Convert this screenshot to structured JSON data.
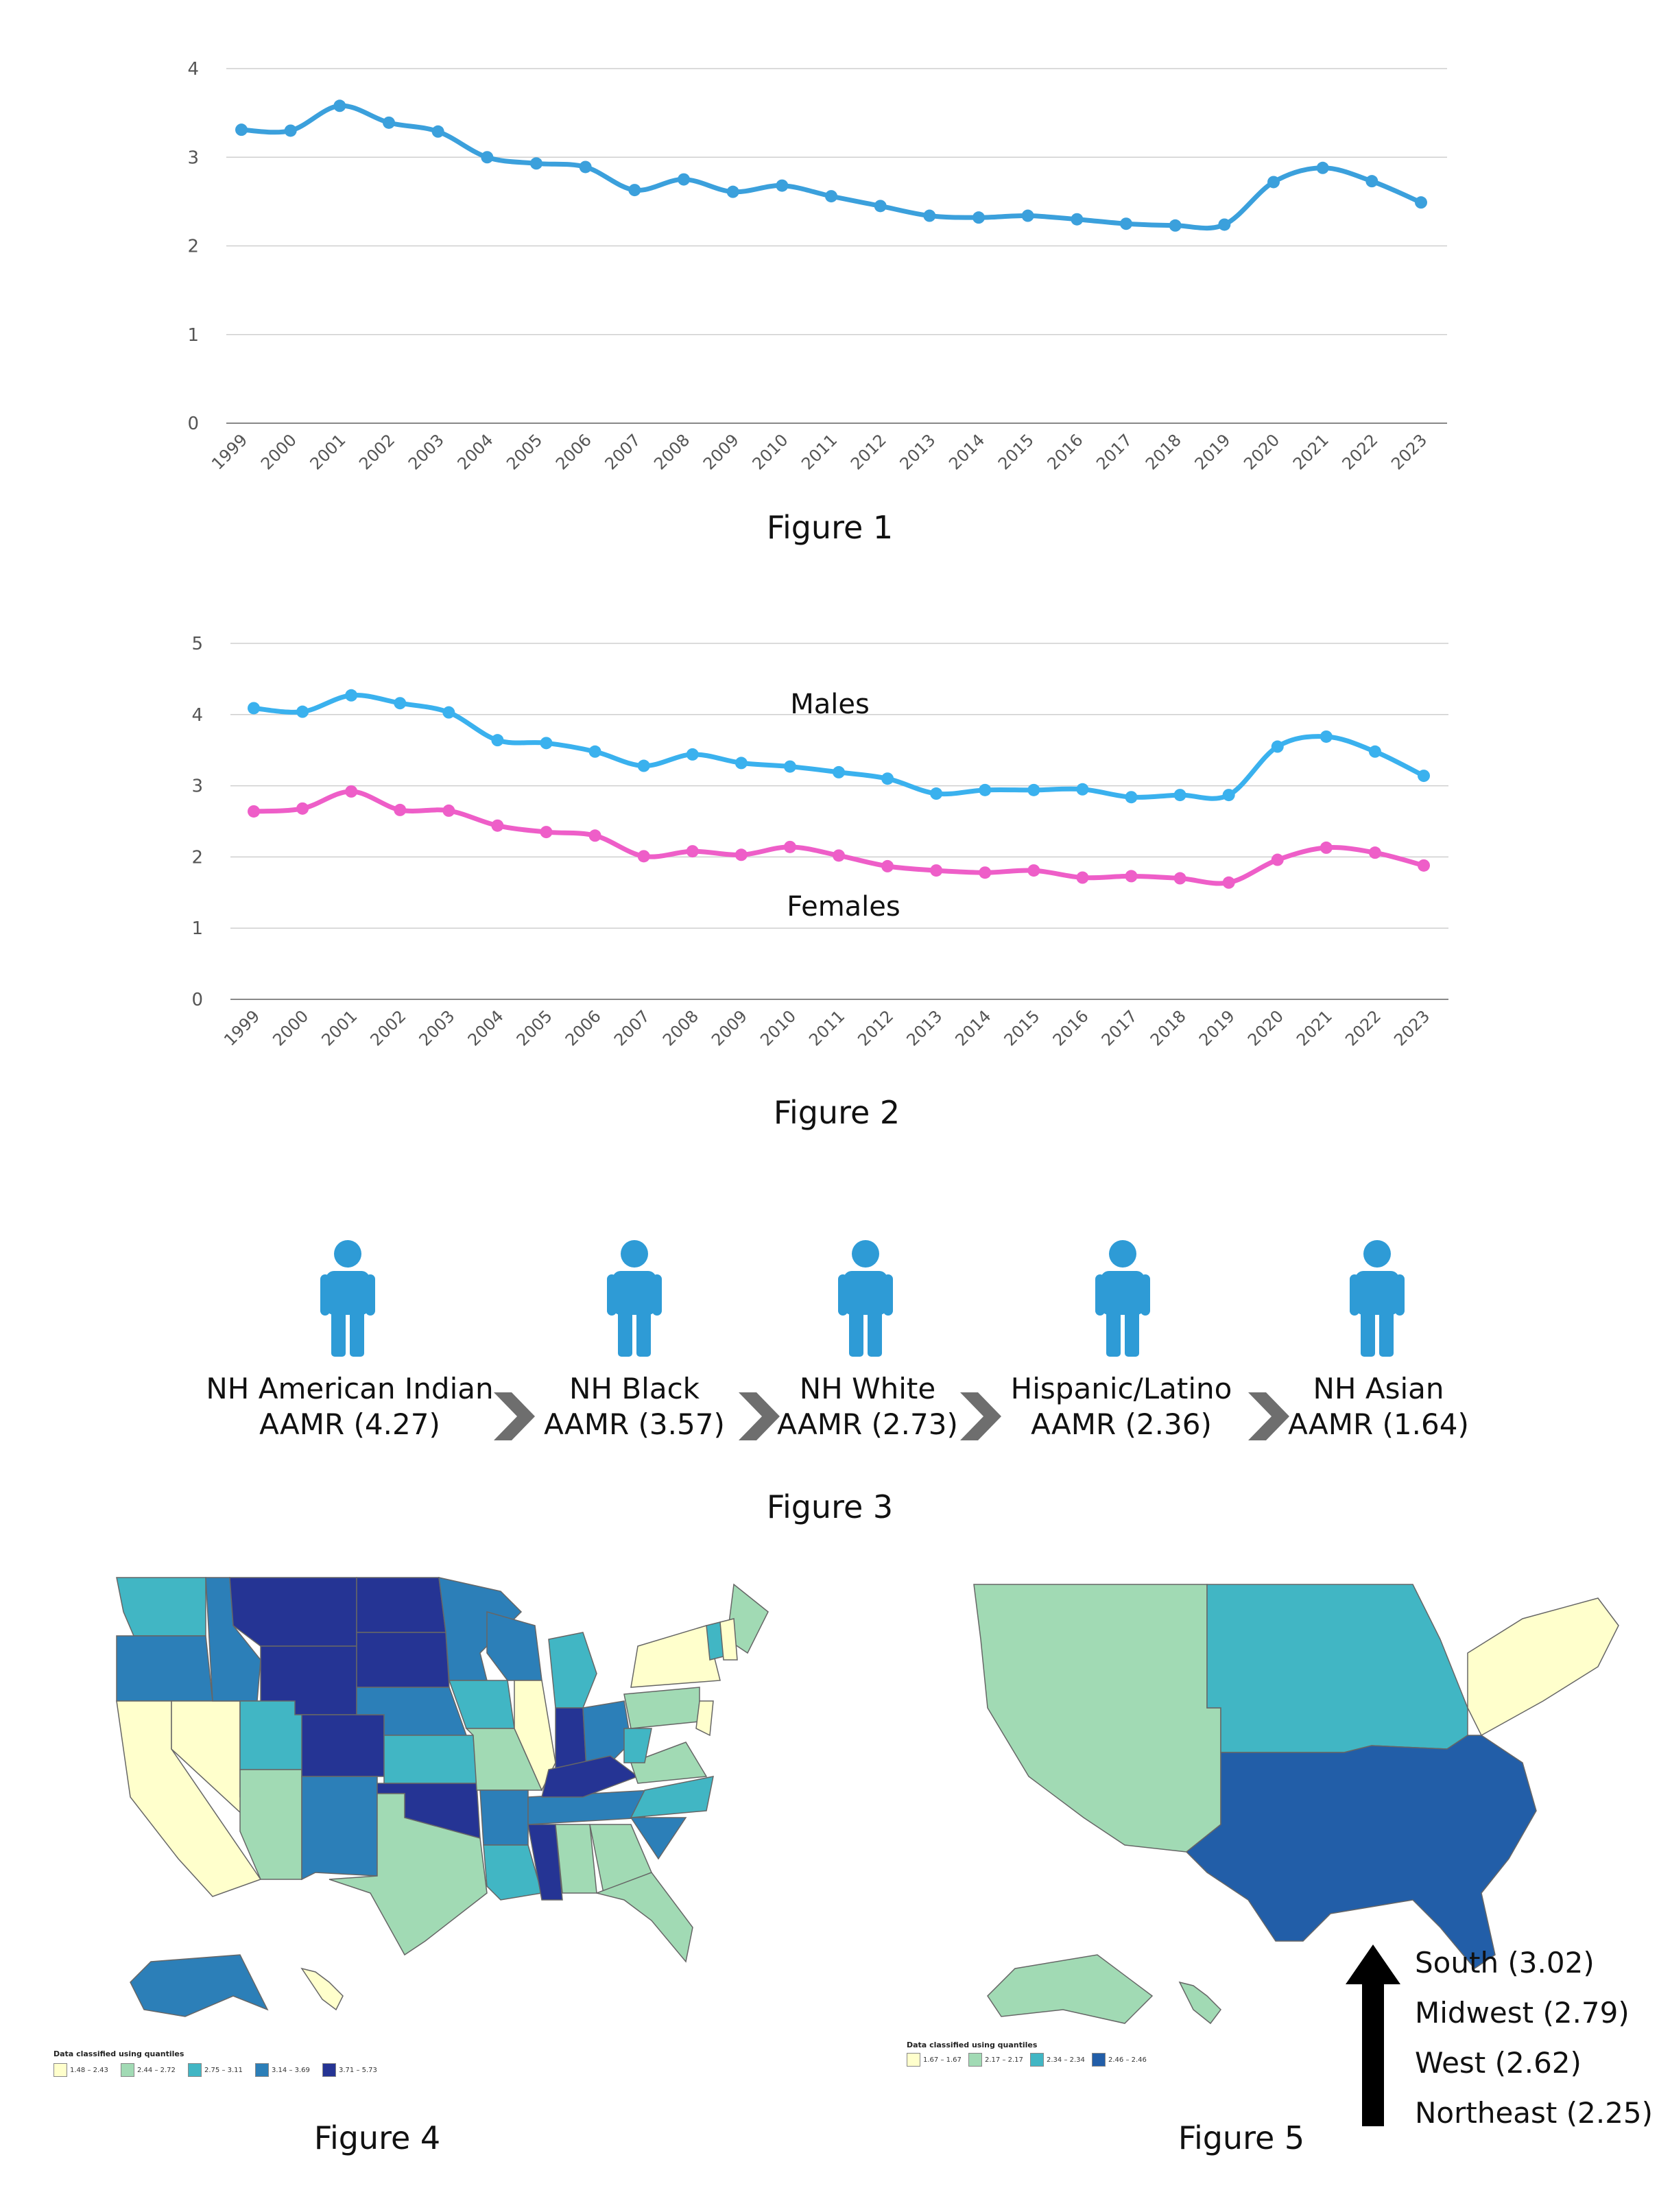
{
  "figures": {
    "fig1_caption": "Figure 1",
    "fig2_caption": "Figure 2",
    "fig3_caption": "Figure 3",
    "fig4_caption": "Figure 4",
    "fig5_caption": "Figure 5"
  },
  "chart_data": [
    {
      "type": "line",
      "x": [
        "1999",
        "2000",
        "2001",
        "2002",
        "2003",
        "2004",
        "2005",
        "2006",
        "2007",
        "2008",
        "2009",
        "2010",
        "2011",
        "2012",
        "2013",
        "2014",
        "2015",
        "2016",
        "2017",
        "2018",
        "2019",
        "2020",
        "2021",
        "2022",
        "2023"
      ],
      "ylim": [
        0,
        4
      ],
      "yticks": [
        "0",
        "1",
        "2",
        "3",
        "4"
      ],
      "series": [
        {
          "color": "#3ba0dc",
          "values": [
            3.31,
            3.3,
            3.58,
            3.39,
            3.29,
            3.0,
            2.93,
            2.89,
            2.63,
            2.75,
            2.61,
            2.68,
            2.56,
            2.45,
            2.34,
            2.32,
            2.34,
            2.3,
            2.25,
            2.23,
            2.24,
            2.72,
            2.88,
            2.73,
            2.49
          ]
        }
      ],
      "grid": true
    },
    {
      "type": "line",
      "x": [
        "1999",
        "2000",
        "2001",
        "2002",
        "2003",
        "2004",
        "2005",
        "2006",
        "2007",
        "2008",
        "2009",
        "2010",
        "2011",
        "2012",
        "2013",
        "2014",
        "2015",
        "2016",
        "2017",
        "2018",
        "2019",
        "2020",
        "2021",
        "2022",
        "2023"
      ],
      "ylim": [
        0,
        5
      ],
      "yticks": [
        "0",
        "1",
        "2",
        "3",
        "4",
        "5"
      ],
      "series": [
        {
          "name": "Males",
          "color": "#3ab1ee",
          "values": [
            4.09,
            4.04,
            4.27,
            4.16,
            4.03,
            3.64,
            3.6,
            3.48,
            3.28,
            3.44,
            3.32,
            3.27,
            3.19,
            3.1,
            2.89,
            2.94,
            2.94,
            2.95,
            2.84,
            2.87,
            2.87,
            3.55,
            3.69,
            3.48,
            3.14
          ]
        },
        {
          "name": "Females",
          "color": "#ee5ec8",
          "values": [
            2.64,
            2.68,
            2.92,
            2.66,
            2.65,
            2.44,
            2.35,
            2.3,
            2.01,
            2.08,
            2.03,
            2.14,
            2.02,
            1.87,
            1.81,
            1.78,
            1.81,
            1.71,
            1.73,
            1.7,
            1.64,
            1.96,
            2.13,
            2.06,
            1.88
          ]
        }
      ],
      "grid": true
    }
  ],
  "groups": [
    {
      "name": "NH American Indian",
      "aamr": "AAMR (4.27)"
    },
    {
      "name": "NH Black",
      "aamr": "AAMR (3.57)"
    },
    {
      "name": "NH White",
      "aamr": "AAMR (2.73)"
    },
    {
      "name": "Hispanic/Latino",
      "aamr": "AAMR (2.36)"
    },
    {
      "name": "NH Asian",
      "aamr": "AAMR (1.64)"
    }
  ],
  "icon_color": "#2e9bd6",
  "arrow_color": "#6e6e6e",
  "map4_legend": {
    "title": "Data classified using quantiles",
    "items": [
      {
        "label": "1.48 – 2.43",
        "color": "#ffffcc"
      },
      {
        "label": "2.44 – 2.72",
        "color": "#a1dab4"
      },
      {
        "label": "2.75 – 3.11",
        "color": "#41b6c4"
      },
      {
        "label": "3.14 – 3.69",
        "color": "#2c7fb8"
      },
      {
        "label": "3.71 – 5.73",
        "color": "#253494"
      }
    ]
  },
  "map5_legend": {
    "title": "Data classified using quantiles",
    "items": [
      {
        "label": "1.67 – 1.67",
        "color": "#ffffcc"
      },
      {
        "label": "2.17 – 2.17",
        "color": "#a1dab4"
      },
      {
        "label": "2.34 – 2.34",
        "color": "#41b6c4"
      },
      {
        "label": "2.46 – 2.46",
        "color": "#225ea8"
      }
    ]
  },
  "regions": [
    "South (3.02)",
    "Midwest (2.79)",
    "West (2.62)",
    "Northeast (2.25)"
  ]
}
